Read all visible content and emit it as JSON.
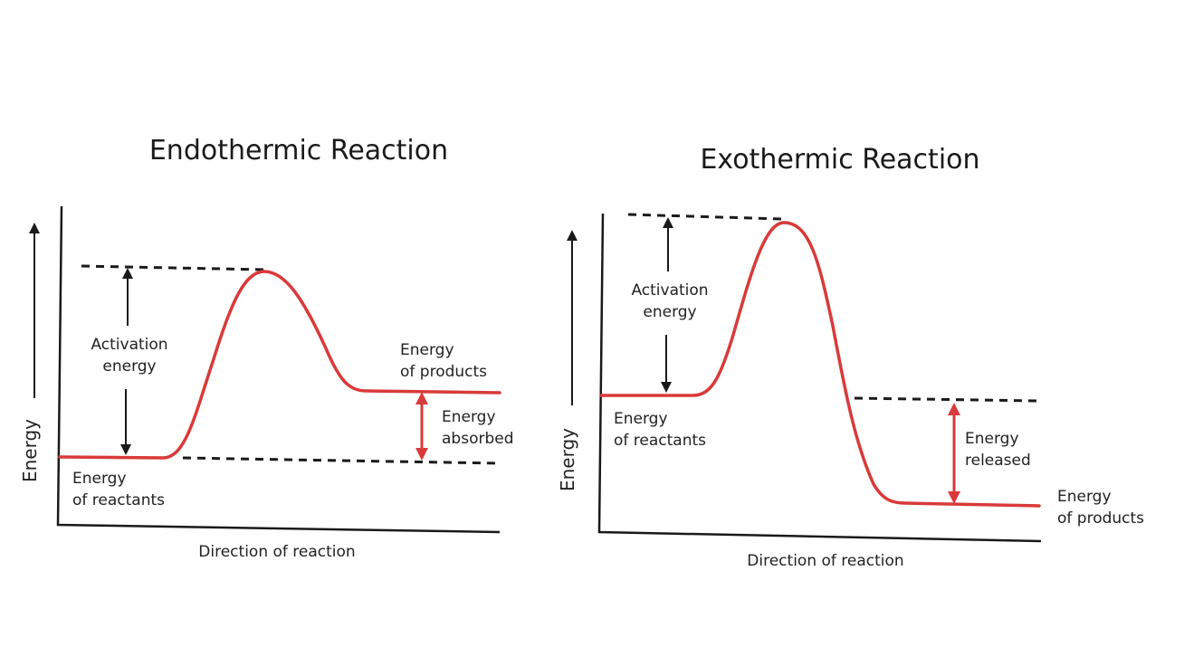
{
  "colors": {
    "curve": "#d93a3a",
    "ink": "#1a1a1a",
    "background": "#ffffff"
  },
  "endothermic": {
    "title": "Endothermic Reaction",
    "y_axis_label": "Energy",
    "x_axis_label": "Direction of reaction",
    "activation_label_1": "Activation",
    "activation_label_2": "energy",
    "reactants_label_1": "Energy",
    "reactants_label_2": "of reactants",
    "products_label_1": "Energy",
    "products_label_2": "of products",
    "change_label_1": "Energy",
    "change_label_2": "absorbed"
  },
  "exothermic": {
    "title": "Exothermic Reaction",
    "y_axis_label": "Energy",
    "x_axis_label": "Direction of reaction",
    "activation_label_1": "Activation",
    "activation_label_2": "energy",
    "reactants_label_1": "Energy",
    "reactants_label_2": "of reactants",
    "products_label_1": "Energy",
    "products_label_2": "of products",
    "change_label_1": "Energy",
    "change_label_2": "released"
  }
}
